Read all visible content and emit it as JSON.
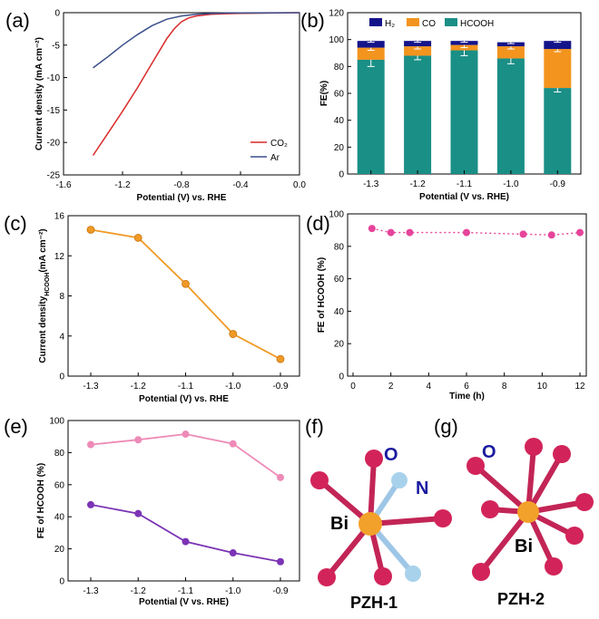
{
  "panel_labels": [
    "(a)",
    "(b)",
    "(c)",
    "(d)",
    "(e)",
    "(f)",
    "(g)"
  ],
  "colors": {
    "co2": "#d92a2a",
    "ar": "#3b4f8c",
    "h2": "#14148a",
    "co": "#f3941e",
    "hcooh": "#1a8f86",
    "orange": "#f09a26",
    "magenta": "#e6449b",
    "pink": "#ee8ab7",
    "purple": "#7b34b5",
    "atom_o": "#d2245a",
    "atom_n": "#a8d2ec",
    "atom_bi": "#f2a12a",
    "label_blue": "#1a1aa0"
  },
  "chart_data": [
    {
      "id": "a",
      "type": "line",
      "xlabel": "Potential (V) vs. RHE",
      "ylabel": "Current density (mA cm⁻²)",
      "xlim": [
        -1.6,
        0.0
      ],
      "ylim": [
        -25,
        0
      ],
      "xticks": [
        -1.6,
        -1.2,
        -0.8,
        -0.4,
        0.0
      ],
      "xtick_labels": [
        "-1.6",
        "-1.2",
        "-0.8",
        "-0.4",
        "0.0"
      ],
      "yticks": [
        -25,
        -20,
        -15,
        -10,
        -5,
        0
      ],
      "ytick_labels": [
        "-25",
        "-20",
        "-15",
        "-10",
        "-5",
        "0"
      ],
      "series": [
        {
          "name": "CO₂",
          "x": [
            -1.4,
            -1.3,
            -1.2,
            -1.1,
            -1.0,
            -0.9,
            -0.85,
            -0.8,
            -0.75,
            -0.7,
            -0.6,
            -0.5,
            -0.4,
            -0.2,
            0.0
          ],
          "y": [
            -22,
            -18.6,
            -15.2,
            -11.6,
            -7.8,
            -4.0,
            -2.5,
            -1.4,
            -0.8,
            -0.5,
            -0.25,
            -0.15,
            -0.1,
            -0.05,
            0.0
          ]
        },
        {
          "name": "Ar",
          "x": [
            -1.4,
            -1.3,
            -1.2,
            -1.1,
            -1.0,
            -0.9,
            -0.8,
            -0.7,
            -0.6,
            -0.5,
            -0.4,
            -0.2,
            0.0
          ],
          "y": [
            -8.5,
            -6.8,
            -5.0,
            -3.4,
            -2.0,
            -1.0,
            -0.5,
            -0.25,
            -0.12,
            -0.06,
            -0.03,
            -0.01,
            0.0
          ]
        }
      ]
    },
    {
      "id": "b",
      "type": "bar",
      "xlabel": "Potential (V vs. RHE)",
      "ylabel": "FE(%)",
      "categories": [
        "-1.3",
        "-1.2",
        "-1.1",
        "-1.0",
        "-0.9"
      ],
      "ylim": [
        0,
        120
      ],
      "yticks": [
        0,
        20,
        40,
        60,
        80,
        100,
        120
      ],
      "ytick_labels": [
        "0",
        "20",
        "40",
        "60",
        "80",
        "100",
        "120"
      ],
      "series": [
        {
          "name": "HCOOH",
          "values": [
            85,
            88,
            92,
            86,
            64
          ],
          "errors": [
            5,
            3,
            4,
            4,
            3
          ]
        },
        {
          "name": "CO",
          "values": [
            9,
            7,
            4,
            9,
            29
          ],
          "errors": [
            2,
            2,
            2,
            2,
            2
          ]
        },
        {
          "name": "H₂",
          "values": [
            5,
            4,
            3,
            3,
            6
          ],
          "errors": [
            1,
            1,
            1,
            1,
            1
          ]
        }
      ]
    },
    {
      "id": "c",
      "type": "line",
      "xlabel": "Potential (V) vs. RHE",
      "ylabel": "Current density",
      "ylabel_sub": "HCOOH",
      "ylabel_unit": "(mA cm⁻²)",
      "categories": [
        "-1.3",
        "-1.2",
        "-1.1",
        "-1.0",
        "-0.9"
      ],
      "values": [
        14.6,
        13.8,
        9.2,
        4.2,
        1.7
      ],
      "ylim": [
        0,
        16
      ],
      "yticks": [
        0,
        4,
        8,
        12,
        16
      ],
      "ytick_labels": [
        "0",
        "4",
        "8",
        "12",
        "16"
      ]
    },
    {
      "id": "d",
      "type": "scatter",
      "xlabel": "Time (h)",
      "ylabel": "FE of HCOOH (%)",
      "xlim": [
        0,
        12
      ],
      "ylim": [
        0,
        100
      ],
      "xticks": [
        0,
        2,
        4,
        6,
        8,
        10,
        12
      ],
      "xtick_labels": [
        "0",
        "2",
        "4",
        "6",
        "8",
        "10",
        "12"
      ],
      "yticks": [
        0,
        20,
        40,
        60,
        80,
        100
      ],
      "ytick_labels": [
        "0",
        "20",
        "40",
        "60",
        "80",
        "100"
      ],
      "x": [
        1,
        2,
        3,
        6,
        9,
        10.5,
        12
      ],
      "y": [
        91,
        88.5,
        88.5,
        88.5,
        87.5,
        87,
        88.5
      ]
    },
    {
      "id": "e",
      "type": "line",
      "xlabel": "Potential (V vs. RHE)",
      "ylabel": "FE of HCOOH (%)",
      "categories": [
        "-1.3",
        "-1.2",
        "-1.1",
        "-1.0",
        "-0.9"
      ],
      "ylim": [
        0,
        100
      ],
      "yticks": [
        0,
        20,
        40,
        60,
        80,
        100
      ],
      "ytick_labels": [
        "0",
        "20",
        "40",
        "60",
        "80",
        "100"
      ],
      "series": [
        {
          "name": "upper",
          "values": [
            85,
            88,
            91.5,
            85.5,
            64.5
          ]
        },
        {
          "name": "lower",
          "values": [
            47.5,
            42,
            24.5,
            17.5,
            12
          ]
        }
      ]
    }
  ],
  "structures": {
    "f": {
      "title": "PZH-1",
      "atom_labels": [
        "O",
        "N",
        "Bi"
      ]
    },
    "g": {
      "title": "PZH-2",
      "atom_labels": [
        "O",
        "Bi"
      ]
    }
  }
}
